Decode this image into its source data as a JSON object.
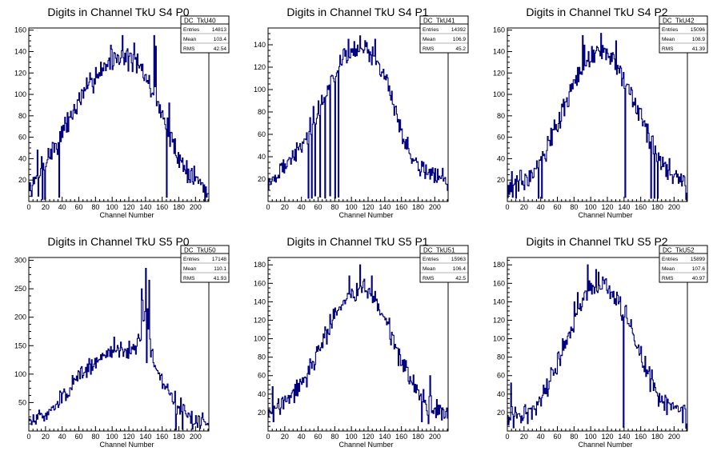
{
  "colors": {
    "line": "#000080",
    "frame": "#000000",
    "background": "#ffffff"
  },
  "chart_data": [
    {
      "type": "line",
      "title": "Digits in Channel TkU S4 P0",
      "xlabel": "Channel Number",
      "ylabel": "",
      "xlim": [
        0,
        216
      ],
      "ylim": [
        0,
        162
      ],
      "xticks": [
        0,
        20,
        40,
        60,
        80,
        100,
        120,
        140,
        160,
        180,
        200
      ],
      "yticks": [
        20,
        40,
        60,
        80,
        100,
        120,
        140,
        160
      ],
      "stats": {
        "name": "DC_TkU40",
        "rows": [
          {
            "label": "Entries",
            "value": "14813"
          },
          {
            "label": "Mean",
            "value": "103.4"
          },
          {
            "label": "RMS",
            "value": "42.54"
          }
        ]
      },
      "profile": [
        [
          0,
          8
        ],
        [
          5,
          15
        ],
        [
          10,
          20
        ],
        [
          20,
          38
        ],
        [
          30,
          50
        ],
        [
          40,
          62
        ],
        [
          50,
          80
        ],
        [
          60,
          92
        ],
        [
          70,
          105
        ],
        [
          80,
          118
        ],
        [
          90,
          126
        ],
        [
          100,
          132
        ],
        [
          110,
          136
        ],
        [
          120,
          134
        ],
        [
          130,
          128
        ],
        [
          140,
          116
        ],
        [
          150,
          100
        ],
        [
          160,
          84
        ],
        [
          170,
          58
        ],
        [
          180,
          42
        ],
        [
          190,
          28
        ],
        [
          200,
          22
        ],
        [
          210,
          14
        ],
        [
          216,
          3
        ]
      ],
      "noise": 14,
      "seed": 7,
      "overrides": [
        [
          10,
          48
        ],
        [
          11,
          5
        ],
        [
          15,
          42
        ],
        [
          16,
          2
        ],
        [
          19,
          2
        ],
        [
          35,
          55
        ],
        [
          36,
          4
        ],
        [
          58,
          95
        ],
        [
          75,
          115
        ],
        [
          98,
          146
        ],
        [
          112,
          155
        ],
        [
          126,
          148
        ],
        [
          150,
          155
        ],
        [
          152,
          145
        ],
        [
          165,
          4
        ],
        [
          168,
          92
        ]
      ]
    },
    {
      "type": "line",
      "title": "Digits in Channel TkU S4 P1",
      "xlabel": "Channel Number",
      "ylabel": "",
      "xlim": [
        0,
        216
      ],
      "ylim": [
        0,
        155
      ],
      "xticks": [
        0,
        20,
        40,
        60,
        80,
        100,
        120,
        140,
        160,
        180,
        200
      ],
      "yticks": [
        20,
        40,
        60,
        80,
        100,
        120,
        140
      ],
      "stats": {
        "name": "DC_TkU41",
        "rows": [
          {
            "label": "Entries",
            "value": "14392"
          },
          {
            "label": "Mean",
            "value": "106.9"
          },
          {
            "label": "RMS",
            "value": "45.2"
          }
        ]
      },
      "profile": [
        [
          0,
          18
        ],
        [
          10,
          22
        ],
        [
          20,
          32
        ],
        [
          30,
          40
        ],
        [
          40,
          50
        ],
        [
          50,
          60
        ],
        [
          60,
          80
        ],
        [
          70,
          95
        ],
        [
          80,
          115
        ],
        [
          90,
          128
        ],
        [
          100,
          134
        ],
        [
          110,
          136
        ],
        [
          120,
          134
        ],
        [
          130,
          126
        ],
        [
          140,
          112
        ],
        [
          150,
          90
        ],
        [
          160,
          62
        ],
        [
          170,
          44
        ],
        [
          180,
          32
        ],
        [
          190,
          26
        ],
        [
          200,
          24
        ],
        [
          210,
          20
        ],
        [
          216,
          15
        ]
      ],
      "noise": 10,
      "seed": 19,
      "overrides": [
        [
          48,
          3
        ],
        [
          50,
          75
        ],
        [
          52,
          3
        ],
        [
          54,
          85
        ],
        [
          56,
          5
        ],
        [
          60,
          90
        ],
        [
          62,
          4
        ],
        [
          64,
          95
        ],
        [
          68,
          3
        ],
        [
          72,
          100
        ],
        [
          74,
          5
        ],
        [
          78,
          110
        ],
        [
          80,
          3
        ],
        [
          82,
          115
        ],
        [
          84,
          4
        ],
        [
          96,
          145
        ],
        [
          110,
          148
        ],
        [
          118,
          142
        ],
        [
          128,
          145
        ]
      ]
    },
    {
      "type": "line",
      "title": "Digits in Channel TkU S4 P2",
      "xlabel": "Channel Number",
      "ylabel": "",
      "xlim": [
        0,
        216
      ],
      "ylim": [
        0,
        162
      ],
      "xticks": [
        0,
        20,
        40,
        60,
        80,
        100,
        120,
        140,
        160,
        180,
        200
      ],
      "yticks": [
        20,
        40,
        60,
        80,
        100,
        120,
        140,
        160
      ],
      "stats": {
        "name": "DC_TkU42",
        "rows": [
          {
            "label": "Entries",
            "value": "15096"
          },
          {
            "label": "Mean",
            "value": "108.9"
          },
          {
            "label": "RMS",
            "value": "41.39"
          }
        ]
      },
      "profile": [
        [
          0,
          10
        ],
        [
          10,
          15
        ],
        [
          20,
          22
        ],
        [
          30,
          30
        ],
        [
          40,
          40
        ],
        [
          50,
          55
        ],
        [
          60,
          72
        ],
        [
          70,
          92
        ],
        [
          80,
          110
        ],
        [
          90,
          126
        ],
        [
          100,
          134
        ],
        [
          110,
          140
        ],
        [
          120,
          138
        ],
        [
          130,
          130
        ],
        [
          140,
          118
        ],
        [
          150,
          100
        ],
        [
          160,
          80
        ],
        [
          170,
          60
        ],
        [
          180,
          42
        ],
        [
          190,
          30
        ],
        [
          200,
          24
        ],
        [
          210,
          18
        ],
        [
          216,
          10
        ]
      ],
      "noise": 14,
      "seed": 33,
      "overrides": [
        [
          5,
          28
        ],
        [
          6,
          4
        ],
        [
          10,
          3
        ],
        [
          37,
          3
        ],
        [
          40,
          42
        ],
        [
          41,
          3
        ],
        [
          90,
          155
        ],
        [
          92,
          146
        ],
        [
          112,
          157
        ],
        [
          130,
          150
        ],
        [
          141,
          4
        ],
        [
          172,
          3
        ],
        [
          176,
          3
        ],
        [
          180,
          3
        ],
        [
          214,
          2
        ]
      ]
    },
    {
      "type": "line",
      "title": "Digits in Channel TkU S5 P0",
      "xlabel": "Channel Number",
      "ylabel": "",
      "xlim": [
        0,
        216
      ],
      "ylim": [
        0,
        305
      ],
      "xticks": [
        0,
        20,
        40,
        60,
        80,
        100,
        120,
        140,
        160,
        180,
        200
      ],
      "yticks": [
        50,
        100,
        150,
        200,
        250,
        300
      ],
      "stats": {
        "name": "DC_TkU50",
        "rows": [
          {
            "label": "Entries",
            "value": "17148"
          },
          {
            "label": "Mean",
            "value": "110.1"
          },
          {
            "label": "RMS",
            "value": "41.93"
          }
        ]
      },
      "profile": [
        [
          0,
          15
        ],
        [
          10,
          20
        ],
        [
          20,
          30
        ],
        [
          30,
          45
        ],
        [
          40,
          60
        ],
        [
          50,
          78
        ],
        [
          60,
          95
        ],
        [
          70,
          108
        ],
        [
          80,
          120
        ],
        [
          90,
          130
        ],
        [
          100,
          140
        ],
        [
          110,
          145
        ],
        [
          120,
          142
        ],
        [
          130,
          150
        ],
        [
          138,
          195
        ],
        [
          142,
          210
        ],
        [
          146,
          150
        ],
        [
          150,
          120
        ],
        [
          160,
          90
        ],
        [
          170,
          62
        ],
        [
          180,
          40
        ],
        [
          190,
          28
        ],
        [
          200,
          20
        ],
        [
          210,
          16
        ],
        [
          216,
          14
        ]
      ],
      "noise": 18,
      "seed": 51,
      "overrides": [
        [
          102,
          165
        ],
        [
          120,
          158
        ],
        [
          134,
          160
        ],
        [
          135,
          250
        ],
        [
          136,
          230
        ],
        [
          139,
          210
        ],
        [
          140,
          286
        ],
        [
          141,
          120
        ],
        [
          144,
          265
        ],
        [
          146,
          130
        ],
        [
          175,
          70
        ],
        [
          176,
          2
        ],
        [
          182,
          58
        ],
        [
          184,
          3
        ],
        [
          186,
          45
        ],
        [
          192,
          30
        ],
        [
          196,
          3
        ]
      ]
    },
    {
      "type": "line",
      "title": "Digits in Channel TkU S5 P1",
      "xlabel": "Channel Number",
      "ylabel": "",
      "xlim": [
        0,
        216
      ],
      "ylim": [
        0,
        188
      ],
      "xticks": [
        0,
        20,
        40,
        60,
        80,
        100,
        120,
        140,
        160,
        180,
        200
      ],
      "yticks": [
        20,
        40,
        60,
        80,
        100,
        120,
        140,
        160,
        180
      ],
      "stats": {
        "name": "DC_TkU51",
        "rows": [
          {
            "label": "Entries",
            "value": "15963"
          },
          {
            "label": "Mean",
            "value": "106.4"
          },
          {
            "label": "RMS",
            "value": "42.5"
          }
        ]
      },
      "profile": [
        [
          0,
          22
        ],
        [
          10,
          25
        ],
        [
          20,
          30
        ],
        [
          30,
          38
        ],
        [
          40,
          50
        ],
        [
          50,
          65
        ],
        [
          60,
          85
        ],
        [
          70,
          105
        ],
        [
          80,
          125
        ],
        [
          90,
          140
        ],
        [
          100,
          148
        ],
        [
          110,
          154
        ],
        [
          120,
          150
        ],
        [
          130,
          140
        ],
        [
          140,
          122
        ],
        [
          150,
          98
        ],
        [
          160,
          76
        ],
        [
          170,
          56
        ],
        [
          180,
          40
        ],
        [
          190,
          28
        ],
        [
          200,
          24
        ],
        [
          210,
          20
        ],
        [
          216,
          15
        ]
      ],
      "noise": 14,
      "seed": 77,
      "overrides": [
        [
          5,
          48
        ],
        [
          6,
          10
        ],
        [
          20,
          38
        ],
        [
          30,
          45
        ],
        [
          56,
          72
        ],
        [
          97,
          168
        ],
        [
          110,
          180
        ],
        [
          112,
          150
        ],
        [
          124,
          168
        ],
        [
          178,
          50
        ],
        [
          184,
          10
        ],
        [
          186,
          45
        ],
        [
          192,
          8
        ],
        [
          194,
          60
        ],
        [
          196,
          20
        ]
      ]
    },
    {
      "type": "line",
      "title": "Digits in Channel TkU S5 P2",
      "xlabel": "Channel Number",
      "ylabel": "",
      "xlim": [
        0,
        216
      ],
      "ylim": [
        0,
        188
      ],
      "xticks": [
        0,
        20,
        40,
        60,
        80,
        100,
        120,
        140,
        160,
        180,
        200
      ],
      "yticks": [
        20,
        40,
        60,
        80,
        100,
        120,
        140,
        160,
        180
      ],
      "stats": {
        "name": "DC_TkU52",
        "rows": [
          {
            "label": "Entries",
            "value": "15899"
          },
          {
            "label": "Mean",
            "value": "107.6"
          },
          {
            "label": "RMS",
            "value": "40.97"
          }
        ]
      },
      "profile": [
        [
          0,
          20
        ],
        [
          10,
          15
        ],
        [
          20,
          18
        ],
        [
          30,
          25
        ],
        [
          40,
          35
        ],
        [
          50,
          55
        ],
        [
          60,
          75
        ],
        [
          70,
          95
        ],
        [
          80,
          120
        ],
        [
          90,
          140
        ],
        [
          100,
          155
        ],
        [
          110,
          160
        ],
        [
          120,
          156
        ],
        [
          130,
          145
        ],
        [
          140,
          130
        ],
        [
          150,
          108
        ],
        [
          160,
          82
        ],
        [
          170,
          58
        ],
        [
          180,
          40
        ],
        [
          190,
          30
        ],
        [
          200,
          24
        ],
        [
          210,
          20
        ],
        [
          216,
          8
        ]
      ],
      "noise": 15,
      "seed": 91,
      "overrides": [
        [
          4,
          52
        ],
        [
          6,
          18
        ],
        [
          80,
          140
        ],
        [
          84,
          150
        ],
        [
          96,
          180
        ],
        [
          100,
          160
        ],
        [
          106,
          175
        ],
        [
          108,
          150
        ],
        [
          118,
          165
        ],
        [
          139,
          4
        ],
        [
          141,
          135
        ],
        [
          176,
          52
        ],
        [
          212,
          28
        ],
        [
          214,
          3
        ]
      ]
    }
  ]
}
